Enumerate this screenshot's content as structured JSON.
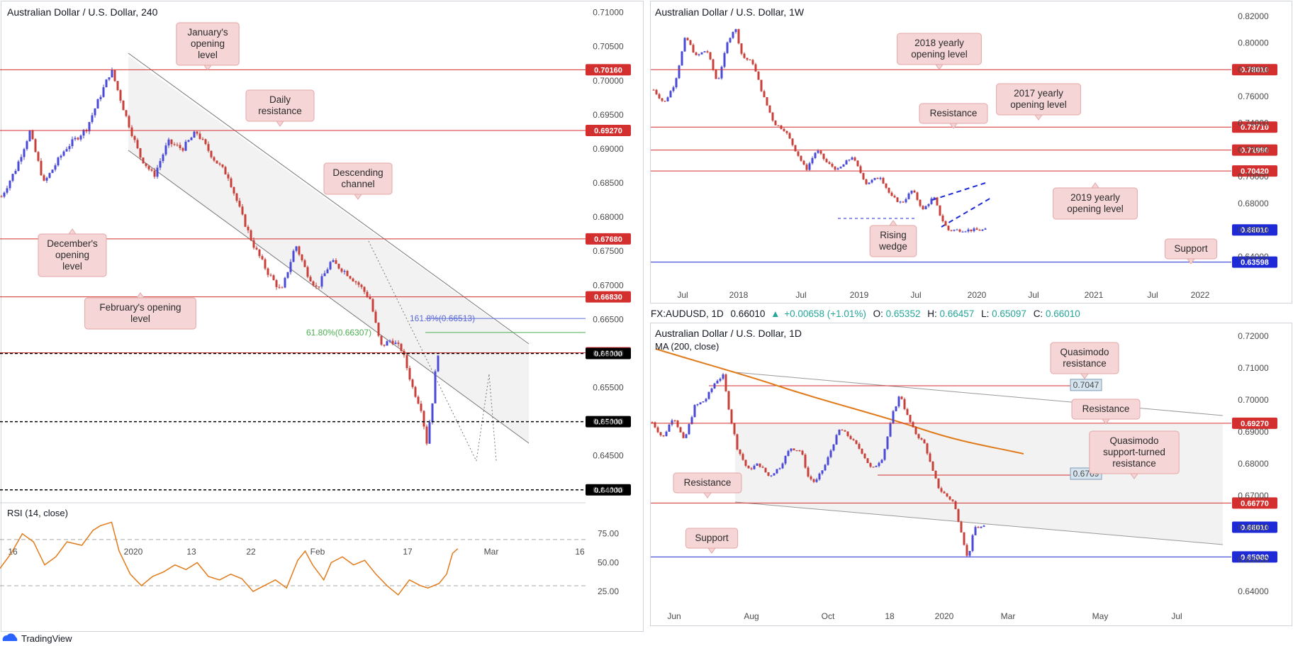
{
  "brand": {
    "name": "TradingView"
  },
  "colors": {
    "resistance": "#d32f2f",
    "support": "#1e2ad6",
    "bull": "#4a4ad6",
    "bear": "#c8403a",
    "ma": "#e07b1c",
    "rsi": "#e07b1c",
    "fib618": "#4caf50",
    "fib1618": "#5b6bd6"
  },
  "chart_data": [
    {
      "id": "h4",
      "type": "candlestick",
      "title": "Australian Dollar / U.S. Dollar, 240",
      "ylim": [
        0.638,
        0.711
      ],
      "y_ticks": [
        "0.71000",
        "0.70500",
        "0.70000",
        "0.69500",
        "0.69000",
        "0.68500",
        "0.68000",
        "0.67500",
        "0.67000",
        "0.66500",
        "0.66000",
        "0.65500",
        "0.65000",
        "0.64500",
        "0.64000"
      ],
      "x_ticks": [
        "16",
        "2020",
        "13",
        "22",
        "Feb",
        "17",
        "Mar",
        "16"
      ],
      "price_labels": [
        {
          "text": "0.70160",
          "value": 0.7016,
          "kind": "resistance"
        },
        {
          "text": "0.69270",
          "value": 0.6927,
          "kind": "resistance"
        },
        {
          "text": "0.67680",
          "value": 0.6768,
          "kind": "resistance"
        },
        {
          "text": "0.66830",
          "value": 0.6683,
          "kind": "resistance"
        },
        {
          "text": "0.66010",
          "value": 0.6601,
          "kind": "resistance"
        },
        {
          "text": "0.66000",
          "value": 0.66,
          "kind": "round"
        },
        {
          "text": "0.65000",
          "value": 0.65,
          "kind": "round"
        },
        {
          "text": "0.64000",
          "value": 0.64,
          "kind": "round"
        }
      ],
      "fib_labels": [
        {
          "text": "161.8%(0.66513)",
          "value": 0.66513
        },
        {
          "text": "61.80%(0.66307)",
          "value": 0.66307
        }
      ],
      "annotations": [
        {
          "text": [
            "January's",
            "opening",
            "level"
          ]
        },
        {
          "text": [
            "Daily",
            "resistance"
          ]
        },
        {
          "text": [
            "Descending",
            "channel"
          ]
        },
        {
          "text": [
            "December's",
            "opening",
            "level"
          ]
        },
        {
          "text": [
            "February's opening",
            "level"
          ]
        }
      ],
      "path": [
        [
          0,
          0.683
        ],
        [
          20,
          0.687
        ],
        [
          40,
          0.6925
        ],
        [
          60,
          0.685
        ],
        [
          90,
          0.69
        ],
        [
          120,
          0.693
        ],
        [
          155,
          0.7016
        ],
        [
          175,
          0.695
        ],
        [
          195,
          0.689
        ],
        [
          215,
          0.686
        ],
        [
          235,
          0.691
        ],
        [
          255,
          0.69
        ],
        [
          275,
          0.6925
        ],
        [
          300,
          0.6885
        ],
        [
          320,
          0.686
        ],
        [
          340,
          0.68
        ],
        [
          355,
          0.676
        ],
        [
          375,
          0.672
        ],
        [
          395,
          0.669
        ],
        [
          415,
          0.676
        ],
        [
          430,
          0.672
        ],
        [
          445,
          0.6695
        ],
        [
          465,
          0.6735
        ],
        [
          485,
          0.672
        ],
        [
          505,
          0.67
        ],
        [
          520,
          0.668
        ],
        [
          535,
          0.661
        ],
        [
          550,
          0.662
        ],
        [
          565,
          0.6605
        ],
        [
          580,
          0.655
        ],
        [
          592,
          0.652
        ],
        [
          600,
          0.647
        ],
        [
          608,
          0.653
        ],
        [
          615,
          0.6601
        ]
      ]
    },
    {
      "id": "rsi",
      "type": "line",
      "title": "RSI (14, close)",
      "ylim": [
        14,
        100
      ],
      "y_ticks": [
        "75.00",
        "50.00",
        "25.00"
      ],
      "levels": [
        70,
        30
      ],
      "path": [
        [
          0,
          45
        ],
        [
          15,
          58
        ],
        [
          30,
          75
        ],
        [
          45,
          68
        ],
        [
          60,
          48
        ],
        [
          75,
          55
        ],
        [
          90,
          68
        ],
        [
          110,
          65
        ],
        [
          125,
          78
        ],
        [
          135,
          82
        ],
        [
          150,
          85
        ],
        [
          160,
          60
        ],
        [
          175,
          40
        ],
        [
          190,
          30
        ],
        [
          205,
          38
        ],
        [
          220,
          42
        ],
        [
          235,
          48
        ],
        [
          250,
          44
        ],
        [
          265,
          50
        ],
        [
          280,
          38
        ],
        [
          295,
          35
        ],
        [
          310,
          40
        ],
        [
          325,
          36
        ],
        [
          340,
          25
        ],
        [
          355,
          30
        ],
        [
          370,
          35
        ],
        [
          385,
          28
        ],
        [
          400,
          52
        ],
        [
          410,
          60
        ],
        [
          420,
          48
        ],
        [
          435,
          35
        ],
        [
          445,
          50
        ],
        [
          460,
          55
        ],
        [
          475,
          48
        ],
        [
          490,
          52
        ],
        [
          505,
          40
        ],
        [
          520,
          30
        ],
        [
          535,
          22
        ],
        [
          550,
          35
        ],
        [
          565,
          30
        ],
        [
          575,
          28
        ],
        [
          590,
          32
        ],
        [
          600,
          40
        ],
        [
          608,
          58
        ],
        [
          615,
          62
        ]
      ]
    },
    {
      "id": "weekly",
      "type": "candlestick",
      "title": "Australian Dollar / U.S. Dollar, 1W",
      "ylim": [
        0.622,
        0.828
      ],
      "y_ticks": [
        "0.82000",
        "0.80000",
        "0.78000",
        "0.76000",
        "0.74000",
        "0.72000",
        "0.70000",
        "0.68000",
        "0.66000",
        "0.64000"
      ],
      "x_ticks": [
        "Jul",
        "2018",
        "Jul",
        "2019",
        "Jul",
        "2020",
        "Jul",
        "2021",
        "Jul",
        "2022"
      ],
      "price_labels": [
        {
          "text": "0.78010",
          "value": 0.7801,
          "kind": "resistance"
        },
        {
          "text": "0.73710",
          "value": 0.7371,
          "kind": "resistance"
        },
        {
          "text": "0.71990",
          "value": 0.7199,
          "kind": "resistance"
        },
        {
          "text": "0.70420",
          "value": 0.7042,
          "kind": "resistance"
        },
        {
          "text": "0.66010",
          "value": 0.6601,
          "kind": "price"
        },
        {
          "text": "0.63598",
          "value": 0.63598,
          "kind": "support"
        }
      ],
      "annotations": [
        {
          "text": [
            "2018 yearly",
            "opening level"
          ]
        },
        {
          "text": [
            "2017 yearly",
            "opening level"
          ]
        },
        {
          "text": [
            "Resistance"
          ]
        },
        {
          "text": [
            "2019 yearly",
            "opening level"
          ]
        },
        {
          "text": [
            "Rising",
            "wedge"
          ]
        },
        {
          "text": [
            "Support"
          ]
        }
      ],
      "path": [
        [
          0,
          0.765
        ],
        [
          15,
          0.755
        ],
        [
          30,
          0.77
        ],
        [
          45,
          0.805
        ],
        [
          60,
          0.79
        ],
        [
          75,
          0.795
        ],
        [
          90,
          0.77
        ],
        [
          105,
          0.802
        ],
        [
          115,
          0.812
        ],
        [
          125,
          0.79
        ],
        [
          140,
          0.785
        ],
        [
          155,
          0.76
        ],
        [
          170,
          0.74
        ],
        [
          185,
          0.735
        ],
        [
          200,
          0.72
        ],
        [
          215,
          0.705
        ],
        [
          230,
          0.72
        ],
        [
          245,
          0.71
        ],
        [
          260,
          0.705
        ],
        [
          280,
          0.715
        ],
        [
          300,
          0.695
        ],
        [
          320,
          0.7
        ],
        [
          335,
          0.685
        ],
        [
          350,
          0.68
        ],
        [
          365,
          0.69
        ],
        [
          380,
          0.675
        ],
        [
          395,
          0.685
        ],
        [
          405,
          0.67
        ],
        [
          415,
          0.66
        ]
      ]
    },
    {
      "id": "daily",
      "type": "candlestick",
      "title": "Australian Dollar / U.S. Dollar, 1D",
      "ma_label": "MA (200, close)",
      "symbol_info": {
        "symbol": "FX:AUDUSD, 1D",
        "close": "0.66010",
        "change": "+0.00658 (+1.01%)",
        "open_label": "O:",
        "open": "0.65352",
        "high_label": "H:",
        "high": "0.66457",
        "low_label": "L:",
        "low": "0.65097",
        "close_label": "C:",
        "close_value": "0.66010"
      },
      "ylim": [
        0.636,
        0.724
      ],
      "y_ticks": [
        "0.72000",
        "0.71000",
        "0.70000",
        "0.69000",
        "0.68000",
        "0.67000",
        "0.66000",
        "0.65000",
        "0.64000"
      ],
      "x_ticks": [
        "Jun",
        "Aug",
        "Oct",
        "18",
        "2020",
        "Mar",
        "May",
        "Jul"
      ],
      "price_labels": [
        {
          "text": "0.69270",
          "value": 0.6927,
          "kind": "resistance"
        },
        {
          "text": "0.66770",
          "value": 0.6677,
          "kind": "resistance"
        },
        {
          "text": "0.66010",
          "value": 0.6601,
          "kind": "price"
        },
        {
          "text": "0.65080",
          "value": 0.6508,
          "kind": "support"
        }
      ],
      "box_labels": [
        {
          "text": "0.7047",
          "value": 0.7047
        },
        {
          "text": "0.6769",
          "value": 0.6769
        }
      ],
      "annotations": [
        {
          "text": [
            "Quasimodo",
            "resistance"
          ]
        },
        {
          "text": [
            "Resistance"
          ]
        },
        {
          "text": [
            "Quasimodo",
            "support-turned",
            "resistance"
          ]
        },
        {
          "text": [
            "Resistance"
          ]
        },
        {
          "text": [
            "Support"
          ]
        }
      ],
      "path": [
        [
          0,
          0.693
        ],
        [
          15,
          0.688
        ],
        [
          30,
          0.695
        ],
        [
          45,
          0.687
        ],
        [
          60,
          0.698
        ],
        [
          75,
          0.7
        ],
        [
          90,
          0.706
        ],
        [
          100,
          0.7075
        ],
        [
          110,
          0.695
        ],
        [
          120,
          0.685
        ],
        [
          135,
          0.678
        ],
        [
          150,
          0.68
        ],
        [
          165,
          0.676
        ],
        [
          180,
          0.679
        ],
        [
          195,
          0.685
        ],
        [
          210,
          0.684
        ],
        [
          220,
          0.676
        ],
        [
          230,
          0.674
        ],
        [
          245,
          0.68
        ],
        [
          255,
          0.686
        ],
        [
          265,
          0.691
        ],
        [
          280,
          0.688
        ],
        [
          295,
          0.684
        ],
        [
          310,
          0.678
        ],
        [
          325,
          0.682
        ],
        [
          340,
          0.696
        ],
        [
          350,
          0.702
        ],
        [
          358,
          0.696
        ],
        [
          370,
          0.69
        ],
        [
          385,
          0.686
        ],
        [
          395,
          0.678
        ],
        [
          405,
          0.672
        ],
        [
          415,
          0.67
        ],
        [
          425,
          0.668
        ],
        [
          435,
          0.66
        ],
        [
          445,
          0.65
        ],
        [
          455,
          0.6601
        ]
      ]
    }
  ]
}
